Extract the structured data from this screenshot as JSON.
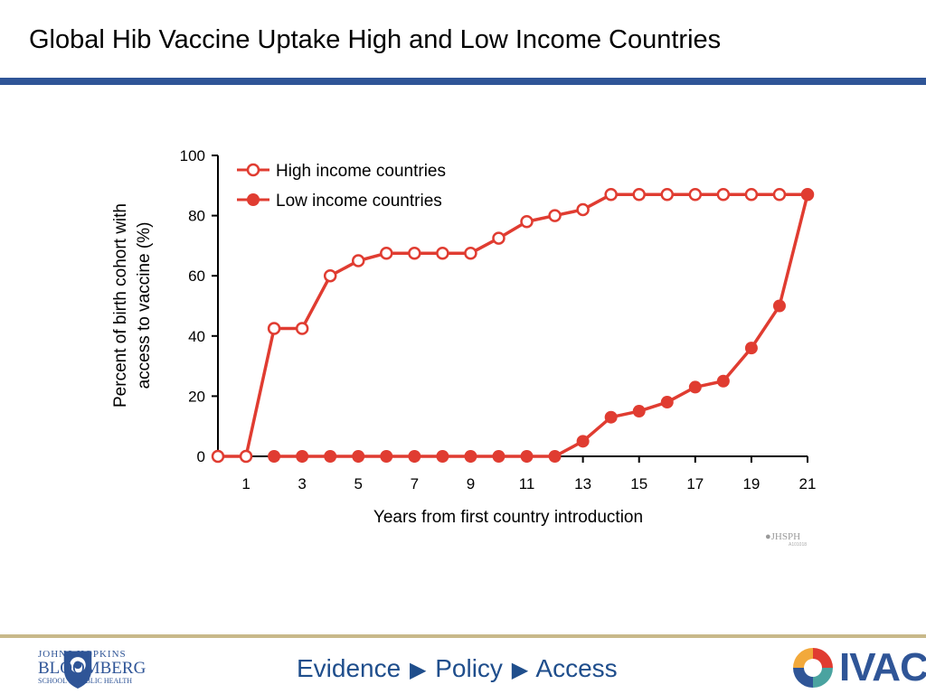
{
  "slide": {
    "title": "Global Hib Vaccine Uptake High and Low Income Countries"
  },
  "watermark": {
    "text": "JHSPH",
    "code": "A101018"
  },
  "footer": {
    "institution_line1": "JOHNS HOPKINS",
    "institution_line2": "BLOOMBERG",
    "institution_line3": "SCHOOL of PUBLIC HEALTH",
    "tagline_1": "Evidence",
    "tagline_2": "Policy",
    "tagline_3": "Access",
    "partner_logo": "IVAC"
  },
  "colors": {
    "series": "#e03c31",
    "accent_bar": "#2f5597",
    "footer_rule": "#c8b98a"
  },
  "chart_data": {
    "type": "line",
    "title": "",
    "xlabel": "Years from first country introduction",
    "ylabel_line1": "Percent of birth cohort with",
    "ylabel_line2": "access to vaccine (%)",
    "xlim": [
      0,
      21
    ],
    "ylim": [
      0,
      100
    ],
    "x_ticks": [
      1,
      3,
      5,
      7,
      9,
      11,
      13,
      15,
      17,
      19,
      21
    ],
    "y_ticks": [
      0,
      20,
      40,
      60,
      80,
      100
    ],
    "legend_position": "top-left",
    "grid": false,
    "series": [
      {
        "name": "High income countries",
        "marker": "open-circle",
        "x": [
          0,
          1,
          2,
          3,
          4,
          5,
          6,
          7,
          8,
          9,
          10,
          11,
          12,
          13,
          14,
          15,
          16,
          17,
          18,
          19,
          20,
          21
        ],
        "values": [
          0,
          0,
          42.5,
          42.5,
          60,
          65,
          67.5,
          67.5,
          67.5,
          67.5,
          72.5,
          78,
          80,
          82,
          87,
          87,
          87,
          87,
          87,
          87,
          87,
          87
        ]
      },
      {
        "name": "Low income countries",
        "marker": "filled-circle",
        "x": [
          2,
          3,
          4,
          5,
          6,
          7,
          8,
          9,
          10,
          11,
          12,
          13,
          14,
          15,
          16,
          17,
          18,
          19,
          20,
          21
        ],
        "values": [
          0,
          0,
          0,
          0,
          0,
          0,
          0,
          0,
          0,
          0,
          0,
          5,
          13,
          15,
          18,
          23,
          25,
          36,
          50,
          87
        ]
      }
    ]
  }
}
